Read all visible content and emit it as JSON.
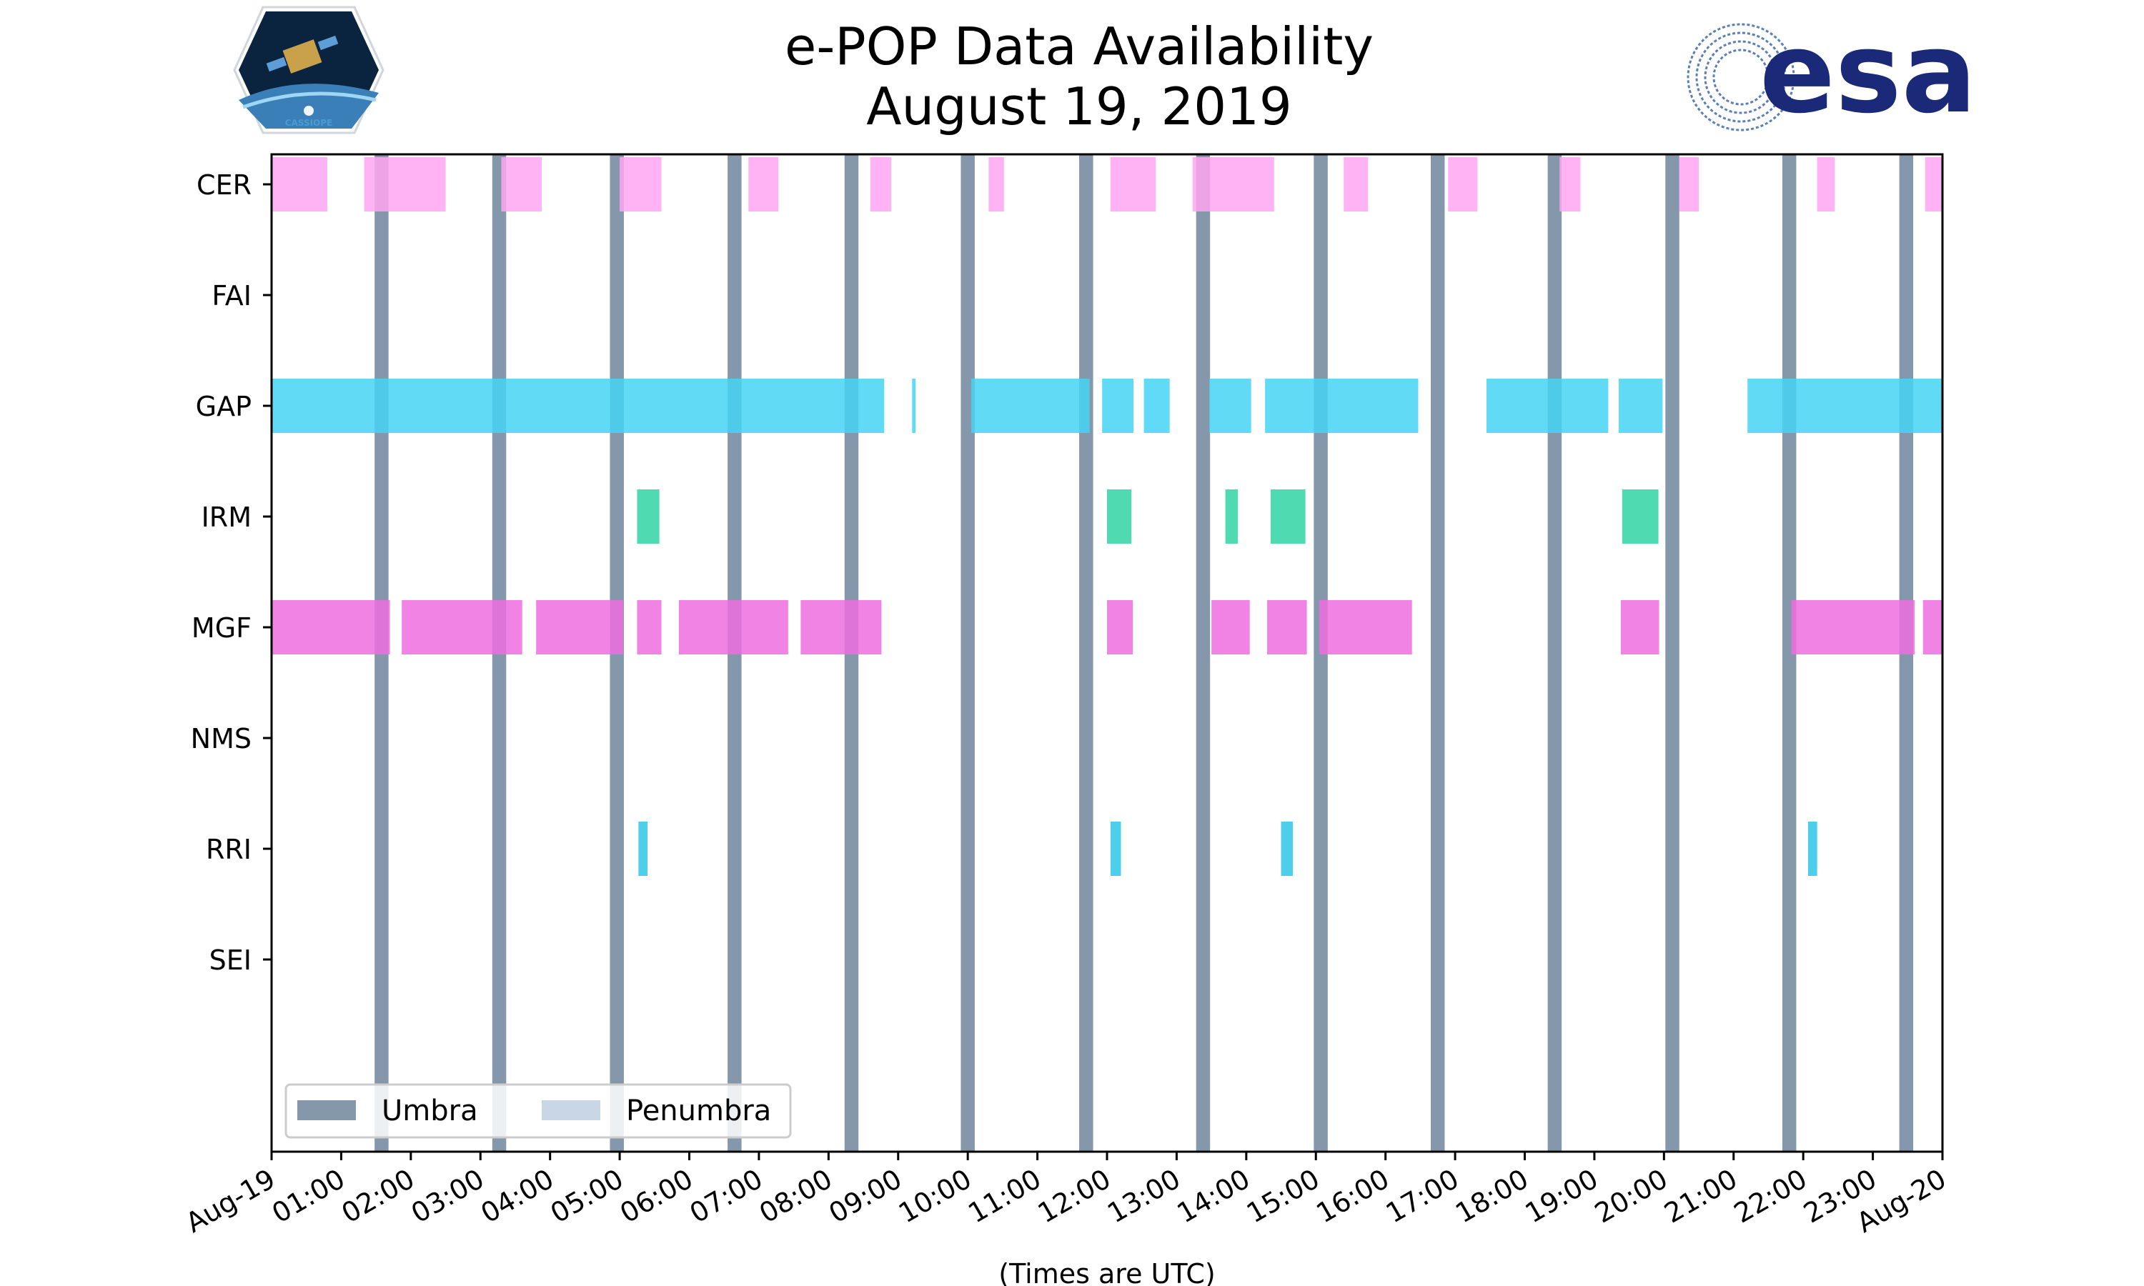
{
  "header": {
    "title_line1": "e-POP Data Availability",
    "title_line2": "August 19, 2019"
  },
  "logos": {
    "mission_logo": {
      "label": "CASSIOPE"
    },
    "agency_logo": {
      "label": "esa"
    }
  },
  "chart_data": {
    "type": "timeline",
    "title": "e-POP Data Availability\nAugust 19, 2019",
    "xlabel": "(Times are UTC)",
    "ylabel": "",
    "x_unit": "hours UTC",
    "xlim": [
      0,
      24
    ],
    "x_ticks": [
      "Aug-19",
      "01:00",
      "02:00",
      "03:00",
      "04:00",
      "05:00",
      "06:00",
      "07:00",
      "08:00",
      "09:00",
      "10:00",
      "11:00",
      "12:00",
      "13:00",
      "14:00",
      "15:00",
      "16:00",
      "17:00",
      "18:00",
      "19:00",
      "20:00",
      "21:00",
      "22:00",
      "23:00",
      "Aug-20"
    ],
    "categories": [
      "CER",
      "FAI",
      "GAP",
      "IRM",
      "MGF",
      "NMS",
      "RRI",
      "SEI"
    ],
    "colors": {
      "CER": "#ffa6f2",
      "FAI": "#cccccc",
      "GAP": "#45d4f5",
      "IRM": "#31d4a4",
      "MGF": "#ef6de0",
      "NMS": "#cccccc",
      "RRI": "#2ec5e6",
      "SEI": "#cccccc",
      "umbra": "#8597aa",
      "penumbra": "#c8d6e6"
    },
    "series": [
      {
        "name": "CER",
        "intervals": [
          [
            0,
            0.8
          ],
          [
            1.33,
            2.5
          ],
          [
            3.3,
            3.88
          ],
          [
            5.0,
            5.6
          ],
          [
            6.85,
            7.28
          ],
          [
            8.6,
            8.9
          ],
          [
            10.3,
            10.52
          ],
          [
            12.05,
            12.7
          ],
          [
            13.23,
            14.4
          ],
          [
            15.4,
            15.75
          ],
          [
            16.9,
            17.32
          ],
          [
            18.5,
            18.8
          ],
          [
            20.22,
            20.5
          ],
          [
            22.2,
            22.45
          ],
          [
            23.75,
            24.0
          ]
        ]
      },
      {
        "name": "FAI",
        "intervals": []
      },
      {
        "name": "GAP",
        "intervals": [
          [
            0,
            8.8
          ],
          [
            9.2,
            9.25
          ],
          [
            10.05,
            11.75
          ],
          [
            11.93,
            12.38
          ],
          [
            12.53,
            12.9
          ],
          [
            13.47,
            14.07
          ],
          [
            14.27,
            16.47
          ],
          [
            17.45,
            19.2
          ],
          [
            19.35,
            19.98
          ],
          [
            21.2,
            24.0
          ]
        ]
      },
      {
        "name": "IRM",
        "intervals": [
          [
            5.25,
            5.57
          ],
          [
            12.0,
            12.35
          ],
          [
            13.7,
            13.88
          ],
          [
            14.35,
            14.85
          ],
          [
            19.4,
            19.92
          ]
        ]
      },
      {
        "name": "MGF",
        "intervals": [
          [
            0,
            1.7
          ],
          [
            1.87,
            3.6
          ],
          [
            3.8,
            5.05
          ],
          [
            5.25,
            5.6
          ],
          [
            5.85,
            7.42
          ],
          [
            7.6,
            8.76
          ],
          [
            12.0,
            12.37
          ],
          [
            13.5,
            14.05
          ],
          [
            14.3,
            14.87
          ],
          [
            15.05,
            16.38
          ],
          [
            19.38,
            19.93
          ],
          [
            21.83,
            23.6
          ],
          [
            23.72,
            24.0
          ]
        ]
      },
      {
        "name": "NMS",
        "intervals": []
      },
      {
        "name": "RRI",
        "intervals": [
          [
            5.27,
            5.4
          ],
          [
            12.05,
            12.2
          ],
          [
            14.5,
            14.67
          ],
          [
            22.07,
            22.2
          ]
        ]
      },
      {
        "name": "SEI",
        "intervals": []
      }
    ],
    "umbra": [
      1.58,
      3.27,
      4.96,
      6.65,
      8.33,
      10.0,
      11.7,
      13.38,
      15.07,
      16.75,
      18.43,
      20.12,
      21.8,
      23.48
    ],
    "umbra_width_hours": 0.2,
    "legend": {
      "position": "bottom-left",
      "entries": [
        {
          "label": "Umbra",
          "key": "umbra"
        },
        {
          "label": "Penumbra",
          "key": "penumbra"
        }
      ]
    }
  }
}
